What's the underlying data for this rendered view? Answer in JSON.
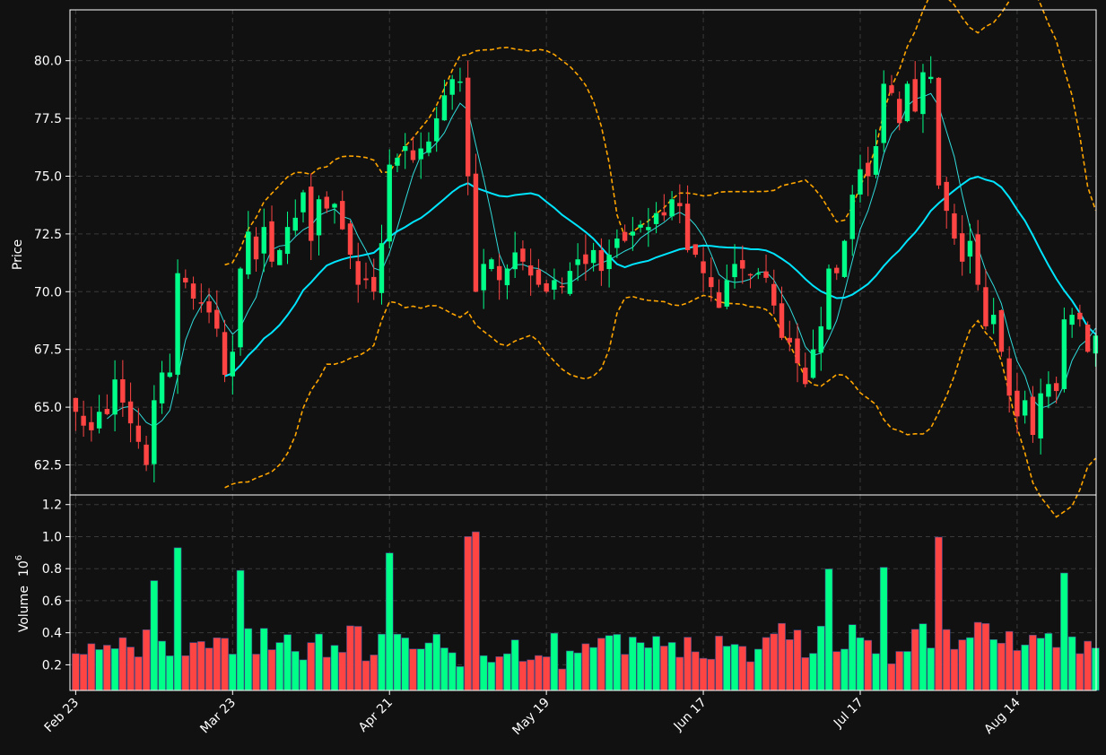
{
  "chart_data": {
    "type": "candlestick",
    "colors": {
      "background": "#111111",
      "up": "#00ff88",
      "down": "#ff4444",
      "ma_fast": "#30dada",
      "ma_slow": "#00e5ff",
      "bollinger": "#ffa500",
      "grid": "#3a3a3a",
      "frame": "#ffffff"
    },
    "price_panel": {
      "ylabel": "Price",
      "ylim": [
        61.2,
        82.2
      ],
      "yticks": [
        "62.5",
        "65.0",
        "67.5",
        "70.0",
        "72.5",
        "75.0",
        "77.5",
        "80.0"
      ],
      "ytick_values": [
        62.5,
        65.0,
        67.5,
        70.0,
        72.5,
        75.0,
        77.5,
        80.0
      ],
      "grid": true
    },
    "volume_panel": {
      "ylabel": "Volume",
      "ylabel_exponent": "6",
      "ylim": [
        0.04,
        1.26
      ],
      "yticks": [
        "0.2",
        "0.4",
        "0.6",
        "0.8",
        "1.0",
        "1.2"
      ],
      "ytick_values": [
        0.2,
        0.4,
        0.6,
        0.8,
        1.0,
        1.2
      ],
      "grid": true
    },
    "x_ticks": [
      {
        "label": "Feb 23",
        "index": 0
      },
      {
        "label": "Mar 23",
        "index": 20
      },
      {
        "label": "Apr 21",
        "index": 40
      },
      {
        "label": "May 19",
        "index": 60
      },
      {
        "label": "Jun 17",
        "index": 80
      },
      {
        "label": "Jul 17",
        "index": 100
      },
      {
        "label": "Aug 14",
        "index": 120
      }
    ],
    "close": [
      64.8,
      64.2,
      64.0,
      64.8,
      64.7,
      66.2,
      65.2,
      64.3,
      63.5,
      62.5,
      65.3,
      66.5,
      66.5,
      70.8,
      70.4,
      69.7,
      69.5,
      69.1,
      68.4,
      66.4,
      67.4,
      71.0,
      72.6,
      71.4,
      72.8,
      71.3,
      71.8,
      72.8,
      73.2,
      74.3,
      72.2,
      74.0,
      73.6,
      73.8,
      72.7,
      71.6,
      70.3,
      70.5,
      70.0,
      72.1,
      75.5,
      75.8,
      76.3,
      75.7,
      76.2,
      76.5,
      77.5,
      78.5,
      79.2,
      79.1,
      75.0,
      70.0,
      71.2,
      71.4,
      70.5,
      71.0,
      71.7,
      71.3,
      70.7,
      70.3,
      70.0,
      70.5,
      70.2,
      70.9,
      71.4,
      71.2,
      71.8,
      70.9,
      71.6,
      72.3,
      72.2,
      72.6,
      72.9,
      72.8,
      73.4,
      73.3,
      74.0,
      73.7,
      71.8,
      71.6,
      70.8,
      70.2,
      69.3,
      70.5,
      71.2,
      71.0,
      70.7,
      70.8,
      70.6,
      69.4,
      68.0,
      67.8,
      66.9,
      66.0,
      67.5,
      68.5,
      71.0,
      70.8,
      72.2,
      74.2,
      75.3,
      75.0,
      76.3,
      79.0,
      78.6,
      77.3,
      79.0,
      77.8,
      79.5,
      79.3,
      74.6,
      73.5,
      72.3,
      71.3,
      72.2,
      70.3,
      68.5,
      69.0,
      67.4,
      65.5,
      64.6,
      65.3,
      63.8,
      65.6,
      66.0,
      65.7,
      68.8,
      69.0,
      68.8,
      67.4,
      68.1
    ]
  }
}
